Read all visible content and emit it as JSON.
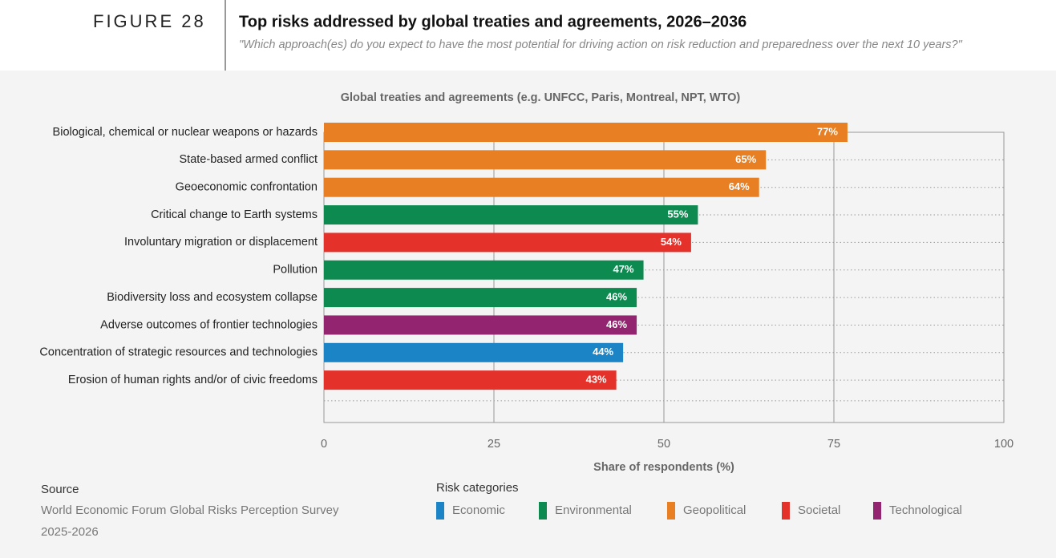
{
  "header": {
    "figure_label": "FIGURE 28",
    "title": "Top risks addressed by global treaties and agreements, 2026–2036",
    "subtitle": "\"Which approach(es) do you expect to have the most potential for driving action on risk reduction and preparedness over the next 10 years?\""
  },
  "chart_data": {
    "type": "bar",
    "orientation": "horizontal",
    "title": "Global treaties and agreements (e.g. UNFCC, Paris, Montreal, NPT, WTO)",
    "x_label": "Share of respondents (%)",
    "categories": [
      "Biological, chemical or nuclear weapons or hazards",
      "State-based armed conflict",
      "Geoeconomic confrontation",
      "Critical change to Earth systems",
      "Involuntary migration or displacement",
      "Pollution",
      "Biodiversity loss and ecosystem collapse",
      "Adverse outcomes of frontier technologies",
      "Concentration of strategic resources and technologies",
      "Erosion of human rights and/or of civic freedoms"
    ],
    "values": [
      77,
      65,
      64,
      55,
      54,
      47,
      46,
      46,
      44,
      43
    ],
    "value_labels": [
      "77%",
      "65%",
      "64%",
      "55%",
      "54%",
      "47%",
      "46%",
      "46%",
      "44%",
      "43%"
    ],
    "colors": [
      "#e87f23",
      "#e87f23",
      "#e87f23",
      "#0c8a4f",
      "#e4322b",
      "#0c8a4f",
      "#0c8a4f",
      "#93246f",
      "#1a84c7",
      "#e4322b"
    ],
    "xlim": [
      0,
      100
    ],
    "xticks": [
      0,
      25,
      50,
      75,
      100
    ],
    "grid": true,
    "legend": {
      "title": "Risk categories",
      "items": [
        {
          "name": "Economic",
          "color": "#1a84c7"
        },
        {
          "name": "Environmental",
          "color": "#0c8a4f"
        },
        {
          "name": "Geopolitical",
          "color": "#e87f23"
        },
        {
          "name": "Societal",
          "color": "#e4322b"
        },
        {
          "name": "Technological",
          "color": "#93246f"
        }
      ]
    }
  },
  "source": {
    "label": "Source",
    "lines": [
      "World Economic Forum Global Risks Perception Survey",
      "2025-2026"
    ]
  }
}
